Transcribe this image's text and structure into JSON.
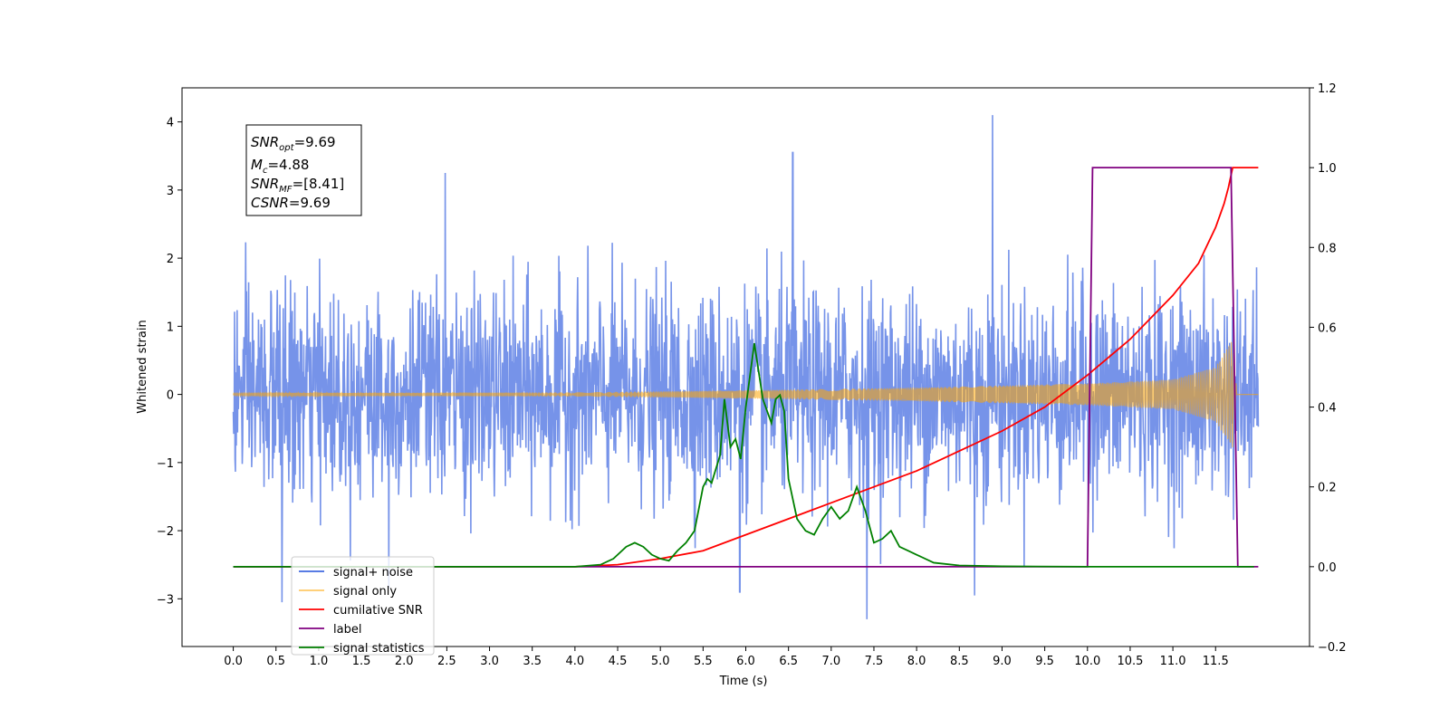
{
  "chart_data": {
    "type": "line",
    "xlabel": "Time (s)",
    "ylabel": "Whitened strain",
    "xlim": [
      -0.6,
      12.6
    ],
    "ylim": [
      -3.7,
      4.5
    ],
    "y2lim": [
      -0.2,
      1.2
    ],
    "x_ticks": [
      "0.0",
      "0.5",
      "1.0",
      "1.5",
      "2.0",
      "2.5",
      "3.0",
      "3.5",
      "4.0",
      "4.5",
      "5.0",
      "5.5",
      "6.0",
      "6.5",
      "7.0",
      "7.5",
      "8.0",
      "8.5",
      "9.0",
      "9.5",
      "10.0",
      "10.5",
      "11.0",
      "11.5"
    ],
    "y_ticks": [
      "-3",
      "-2",
      "-1",
      "0",
      "1",
      "2",
      "3",
      "4"
    ],
    "y2_ticks": [
      "-0.2",
      "0.0",
      "0.2",
      "0.4",
      "0.6",
      "0.8",
      "1.0",
      "1.2"
    ],
    "grid": false,
    "legend_position": "lower-left",
    "annotation": {
      "snr_opt_value": "=9.69",
      "mc_value": "=4.88",
      "snr_mf_value": "=[8.41]",
      "csnr_value": "=9.69"
    },
    "series": [
      {
        "name": "signal+ noise",
        "color": "#4169e1",
        "axis": "left",
        "description_range": [
          -3.3,
          4.1
        ],
        "x_range": [
          0.0,
          12.0
        ],
        "peaks": [
          {
            "x": 8.89,
            "y": 4.1
          },
          {
            "x": 6.55,
            "y": 3.55
          },
          {
            "x": 2.48,
            "y": 3.25
          },
          {
            "x": 0.57,
            "y": -3.05
          },
          {
            "x": 7.42,
            "y": -3.3
          },
          {
            "x": 8.68,
            "y": -2.95
          },
          {
            "x": 5.93,
            "y": -2.9
          },
          {
            "x": 1.82,
            "y": -2.85
          }
        ]
      },
      {
        "name": "signal only",
        "color": "#ffa500",
        "axis": "left",
        "x_range": [
          0.0,
          12.0
        ],
        "envelope": {
          "x": [
            0.0,
            4.0,
            6.0,
            8.0,
            10.0,
            11.0,
            11.5,
            11.7,
            11.75,
            12.0
          ],
          "amp": [
            0.02,
            0.03,
            0.06,
            0.1,
            0.16,
            0.22,
            0.4,
            0.8,
            0.0,
            0.0
          ]
        }
      },
      {
        "name": "cumilative SNR",
        "color": "#ff0000",
        "axis": "right",
        "x": [
          0.0,
          4.0,
          4.5,
          5.0,
          5.5,
          6.0,
          6.5,
          7.0,
          7.5,
          8.0,
          8.5,
          9.0,
          9.5,
          10.0,
          10.5,
          11.0,
          11.3,
          11.5,
          11.6,
          11.65,
          11.7,
          12.0
        ],
        "values": [
          0.0,
          0.0,
          0.005,
          0.02,
          0.04,
          0.08,
          0.12,
          0.16,
          0.2,
          0.24,
          0.29,
          0.34,
          0.4,
          0.48,
          0.57,
          0.68,
          0.76,
          0.85,
          0.91,
          0.95,
          1.0,
          1.0
        ]
      },
      {
        "name": "label",
        "color": "#800080",
        "axis": "right",
        "x": [
          0.0,
          10.0,
          10.06,
          11.68,
          11.76,
          12.0
        ],
        "values": [
          0.0,
          0.0,
          1.0,
          1.0,
          0.0,
          0.0
        ]
      },
      {
        "name": "signal statistics",
        "color": "#008000",
        "axis": "right",
        "x": [
          0.0,
          4.0,
          4.3,
          4.45,
          4.6,
          4.7,
          4.8,
          4.9,
          5.0,
          5.1,
          5.2,
          5.3,
          5.4,
          5.5,
          5.55,
          5.6,
          5.7,
          5.75,
          5.82,
          5.88,
          5.94,
          6.0,
          6.1,
          6.2,
          6.3,
          6.35,
          6.4,
          6.45,
          6.5,
          6.6,
          6.7,
          6.8,
          6.9,
          7.0,
          7.1,
          7.2,
          7.3,
          7.4,
          7.5,
          7.6,
          7.7,
          7.8,
          7.9,
          8.0,
          8.2,
          8.5,
          9.0,
          10.0,
          11.0,
          11.95
        ],
        "values": [
          0.0,
          0.0,
          0.005,
          0.02,
          0.05,
          0.06,
          0.05,
          0.03,
          0.02,
          0.015,
          0.04,
          0.06,
          0.09,
          0.2,
          0.22,
          0.21,
          0.28,
          0.42,
          0.3,
          0.32,
          0.27,
          0.4,
          0.56,
          0.42,
          0.36,
          0.42,
          0.43,
          0.39,
          0.22,
          0.12,
          0.09,
          0.08,
          0.12,
          0.15,
          0.12,
          0.14,
          0.2,
          0.14,
          0.06,
          0.07,
          0.09,
          0.05,
          0.04,
          0.03,
          0.01,
          0.003,
          0.001,
          0.0,
          0.0,
          0.0
        ]
      }
    ],
    "legend_entries": [
      {
        "label": "signal+ noise",
        "color": "#4169e1"
      },
      {
        "label": "signal only",
        "color": "#ffa500"
      },
      {
        "label": "cumilative SNR",
        "color": "#ff0000"
      },
      {
        "label": "label",
        "color": "#800080"
      },
      {
        "label": "signal statistics",
        "color": "#008000"
      }
    ]
  }
}
